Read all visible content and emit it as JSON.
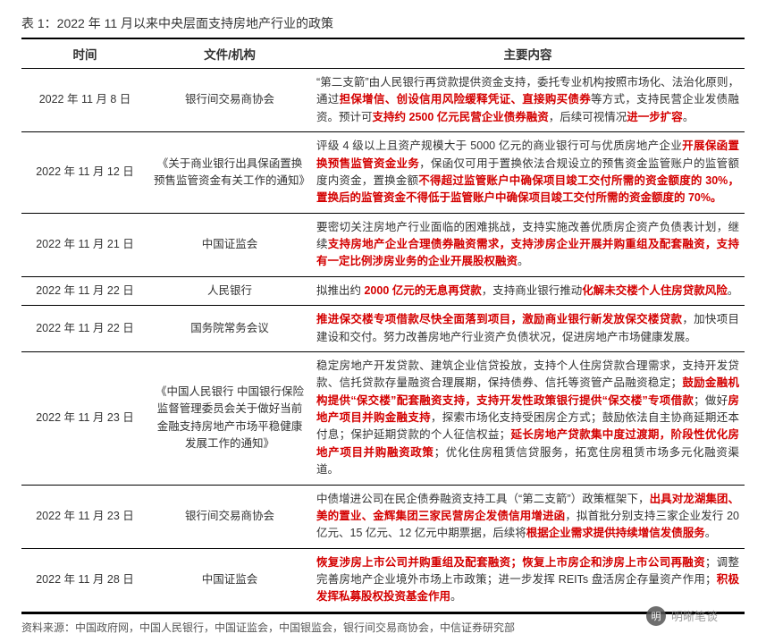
{
  "title": "表 1：2022 年 11 月以来中央层面支持房地产行业的政策",
  "columns": {
    "date": "时间",
    "org": "文件/机构",
    "content": "主要内容"
  },
  "rows": [
    {
      "date": "2022 年 11 月 8 日",
      "org": "银行间交易商协会",
      "content": "“第二支箭”由人民银行再贷款提供资金支持，委托专业机构按照市场化、法治化原则，通过<span class='red'>担保增信、创设信用风险缓释凭证、直接购买债券</span>等方式，支持民营企业发债融资。预计可<span class='red'>支持约 2500 亿元民营企业债券融资</span>，后续可视情况<span class='red'>进一步扩容</span>。"
    },
    {
      "date": "2022 年 11 月 12 日",
      "org": "《关于商业银行出具保函置换预售监管资金有关工作的通知》",
      "content": "评级 4 级以上且资产规模大于 5000 亿元的商业银行可与优质房地产企业<span class='red'>开展保函置换预售监管资金业务</span>，保函仅可用于置换依法合规设立的预售资金监管账户的监管额度内资金，置换金额<span class='red'>不得超过监管账户中确保项目竣工交付所需的资金额度的 30%，置换后的监管资金不得低于监管账户中确保项目竣工交付所需的资金额度的 70%。</span>"
    },
    {
      "date": "2022 年 11 月 21 日",
      "org": "中国证监会",
      "content": "要密切关注房地产行业面临的困难挑战，支持实施改善优质房企资产负债表计划，继续<span class='red'>支持房地产企业合理债券融资需求，支持涉房企业开展并购重组及配套融资，支持有一定比例涉房业务的企业开展股权融资</span>。"
    },
    {
      "date": "2022 年 11 月 22 日",
      "org": "人民银行",
      "content": "拟推出约 <span class='red'>2000 亿元的无息再贷款</span>，支持商业银行推动<span class='red'>化解未交楼个人住房贷款风险</span>。"
    },
    {
      "date": "2022 年 11 月 22 日",
      "org": "国务院常务会议",
      "content": "<span class='red'>推进保交楼专项借款尽快全面落到项目，激励商业银行新发放保交楼贷款</span>，加快项目建设和交付。努力改善房地产行业资产负债状况，促进房地产市场健康发展。"
    },
    {
      "date": "2022 年 11 月 23 日",
      "org": "《中国人民银行 中国银行保险监督管理委员会关于做好当前金融支持房地产市场平稳健康发展工作的通知》",
      "content": "稳定房地产开发贷款、建筑企业信贷投放，支持个人住房贷款合理需求，支持开发贷款、信托贷款存量融资合理展期，保持债券、信托等资管产品融资稳定；<span class='red'>鼓励金融机构提供“保交楼”配套融资支持，支持开发性政策银行提供“保交楼”专项借款</span>；做好<span class='red'>房地产项目并购金融支持</span>，探索市场化支持受困房企方式；鼓励依法自主协商延期还本付息；保护延期贷款的个人征信权益；<span class='red'>延长房地产贷款集中度过渡期，阶段性优化房地产项目并购融资政策</span>；优化住房租赁信贷服务，拓宽住房租赁市场多元化融资渠道。"
    },
    {
      "date": "2022 年 11 月 23 日",
      "org": "银行间交易商协会",
      "content": "中债增进公司在民企债券融资支持工具（“第二支箭”）政策框架下，<span class='red'>出具对龙湖集团、美的置业、金辉集团三家民营房企发债信用增进函</span>，拟首批分别支持三家企业发行 20 亿元、15 亿元、12 亿元中期票据，后续将<span class='red'>根据企业需求提供持续增信发债服务</span>。"
    },
    {
      "date": "2022 年 11 月 28 日",
      "org": "中国证监会",
      "content": "<span class='red'>恢复涉房上市公司并购重组及配套融资；恢复上市房企和涉房上市公司再融资</span>；调整完善房地产企业境外市场上市政策；进一步发挥 REITs 盘活房企存量资产作用；<span class='red'>积极发挥私募股权投资基金作用</span>。"
    }
  ],
  "source": "资料来源：中国政府网，中国人民银行，中国证监会，中国银监会，银行间交易商协会，中信证券研究部",
  "watermark": {
    "icon": "明",
    "text": "明晰笔谈"
  }
}
